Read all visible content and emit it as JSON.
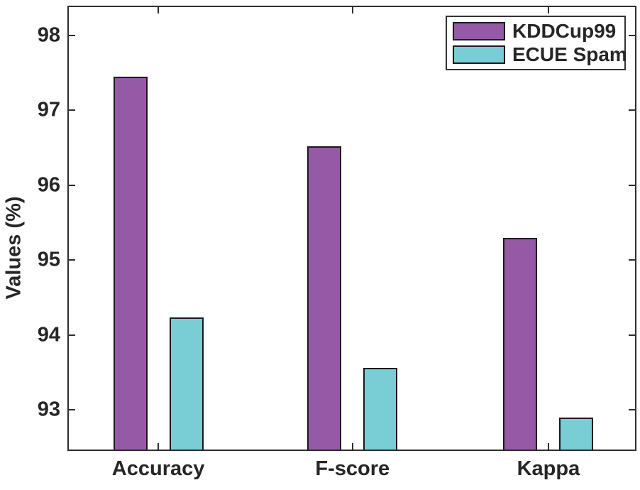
{
  "chart_data": {
    "type": "bar",
    "title": "",
    "xlabel": "",
    "ylabel": "Values (%)",
    "categories": [
      "Accuracy",
      "F-score",
      "Kappa"
    ],
    "series": [
      {
        "name": "KDDCup99",
        "color": "#9659A6",
        "values": [
          97.45,
          96.52,
          95.3
        ]
      },
      {
        "name": "ECUE Spam",
        "color": "#79CDD5",
        "values": [
          94.23,
          93.56,
          92.9
        ]
      }
    ],
    "ylim": [
      92.47,
      98.38
    ],
    "yticks": [
      93,
      94,
      95,
      96,
      97,
      98
    ],
    "grid": false,
    "legend_position": "top-right",
    "axis_color": "#2e2e2e"
  }
}
